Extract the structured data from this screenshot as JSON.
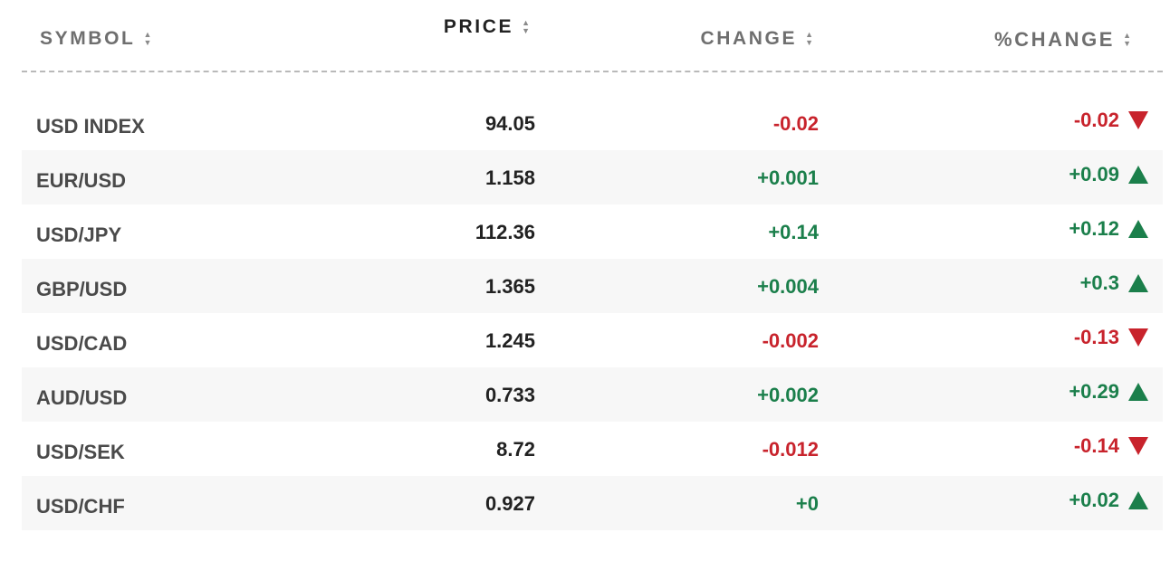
{
  "header": {
    "symbol": "SYMBOL",
    "price": "PRICE",
    "change": "CHANGE",
    "pct_change": "%CHANGE",
    "sort_icon_up": "▲",
    "sort_icon_down": "▼"
  },
  "colors": {
    "negative": "#c8232c",
    "positive": "#1b7f4b",
    "row_alt_bg": "#f7f7f7"
  },
  "rows": [
    {
      "symbol": "USD INDEX",
      "price": "94.05",
      "change": "-0.02",
      "pct_change": "-0.02",
      "direction": "down"
    },
    {
      "symbol": "EUR/USD",
      "price": "1.158",
      "change": "+0.001",
      "pct_change": "+0.09",
      "direction": "up"
    },
    {
      "symbol": "USD/JPY",
      "price": "112.36",
      "change": "+0.14",
      "pct_change": "+0.12",
      "direction": "up"
    },
    {
      "symbol": "GBP/USD",
      "price": "1.365",
      "change": "+0.004",
      "pct_change": "+0.3",
      "direction": "up"
    },
    {
      "symbol": "USD/CAD",
      "price": "1.245",
      "change": "-0.002",
      "pct_change": "-0.13",
      "direction": "down"
    },
    {
      "symbol": "AUD/USD",
      "price": "0.733",
      "change": "+0.002",
      "pct_change": "+0.29",
      "direction": "up"
    },
    {
      "symbol": "USD/SEK",
      "price": "8.72",
      "change": "-0.012",
      "pct_change": "-0.14",
      "direction": "down"
    },
    {
      "symbol": "USD/CHF",
      "price": "0.927",
      "change": "+0",
      "pct_change": "+0.02",
      "direction": "up"
    }
  ]
}
